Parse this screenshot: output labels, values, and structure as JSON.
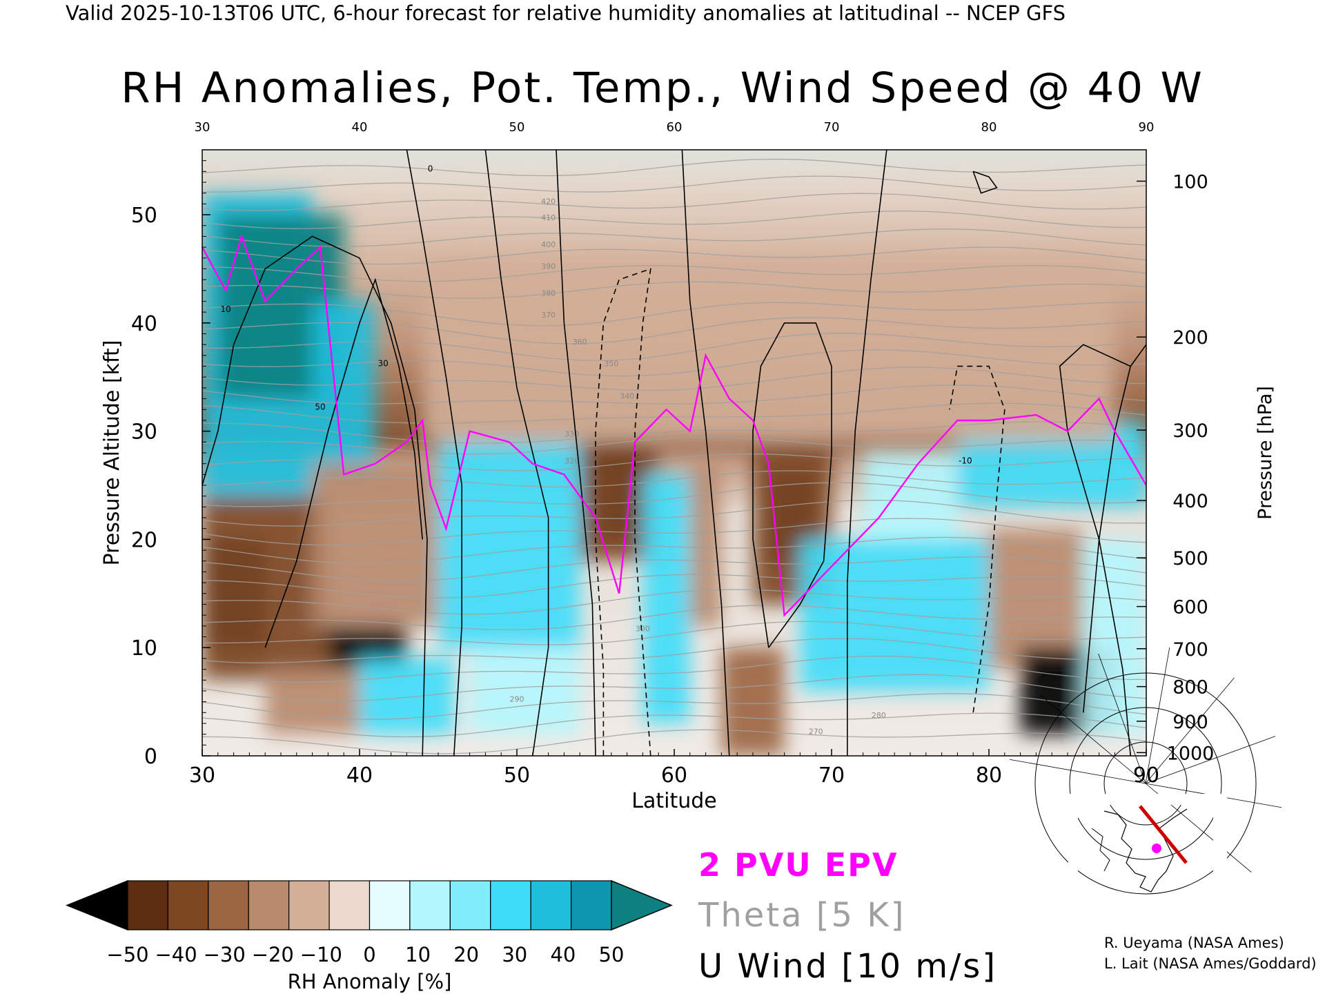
{
  "header": "Valid 2025-10-13T06 UTC, 6-hour forecast for relative humidity anomalies at latitudinal -- NCEP GFS",
  "chart_data": {
    "type": "heatmap",
    "title": "RH Anomalies, Pot. Temp., Wind Speed @ 40 W",
    "xlabel": "Latitude",
    "ylabel_left": "Pressure Altitude [kft]",
    "ylabel_right": "Pressure [hPa]",
    "xlim": [
      30,
      90
    ],
    "ylim_kft": [
      0,
      56
    ],
    "x_ticks": [
      "30",
      "40",
      "50",
      "60",
      "70",
      "80",
      "90"
    ],
    "y_ticks_left": [
      "0",
      "10",
      "20",
      "30",
      "40",
      "50"
    ],
    "y_ticks_right": [
      {
        "label": "100",
        "kft": 53.1
      },
      {
        "label": "200",
        "kft": 38.7
      },
      {
        "label": "300",
        "kft": 30.1
      },
      {
        "label": "400",
        "kft": 23.6
      },
      {
        "label": "500",
        "kft": 18.3
      },
      {
        "label": "600",
        "kft": 13.8
      },
      {
        "label": "700",
        "kft": 9.9
      },
      {
        "label": "800",
        "kft": 6.4
      },
      {
        "label": "900",
        "kft": 3.2
      },
      {
        "label": "1000",
        "kft": 0.3
      }
    ],
    "rh_anomaly_cells": [
      {
        "lat": [
          30,
          34
        ],
        "kft": [
          10,
          20
        ],
        "v": -60
      },
      {
        "lat": [
          30,
          38
        ],
        "kft": [
          7,
          24
        ],
        "v": -40
      },
      {
        "lat": [
          34,
          40
        ],
        "kft": [
          2,
          8
        ],
        "v": -20
      },
      {
        "lat": [
          30,
          37
        ],
        "kft": [
          24,
          52
        ],
        "v": 40
      },
      {
        "lat": [
          31,
          39
        ],
        "kft": [
          33,
          50
        ],
        "v": 55
      },
      {
        "lat": [
          37,
          41
        ],
        "kft": [
          26,
          42
        ],
        "v": 35
      },
      {
        "lat": [
          38,
          43
        ],
        "kft": [
          8,
          12
        ],
        "v": -60
      },
      {
        "lat": [
          37,
          45
        ],
        "kft": [
          12,
          27
        ],
        "v": -25
      },
      {
        "lat": [
          40,
          46
        ],
        "kft": [
          2,
          9
        ],
        "v": 25
      },
      {
        "lat": [
          45,
          54
        ],
        "kft": [
          10,
          29
        ],
        "v": 25
      },
      {
        "lat": [
          47,
          54
        ],
        "kft": [
          2,
          10
        ],
        "v": 15
      },
      {
        "lat": [
          55,
          58
        ],
        "kft": [
          20,
          29
        ],
        "v": -60
      },
      {
        "lat": [
          54,
          59
        ],
        "kft": [
          18,
          31
        ],
        "v": -35
      },
      {
        "lat": [
          58,
          61
        ],
        "kft": [
          3,
          26
        ],
        "v": 30
      },
      {
        "lat": [
          61,
          63
        ],
        "kft": [
          12,
          27
        ],
        "v": -20
      },
      {
        "lat": [
          63,
          67
        ],
        "kft": [
          0,
          10
        ],
        "v": -30
      },
      {
        "lat": [
          66,
          69
        ],
        "kft": [
          18,
          26
        ],
        "v": -60
      },
      {
        "lat": [
          65,
          70
        ],
        "kft": [
          14,
          32
        ],
        "v": -35
      },
      {
        "lat": [
          68,
          80
        ],
        "kft": [
          6,
          20
        ],
        "v": 25
      },
      {
        "lat": [
          72,
          78
        ],
        "kft": [
          20,
          28
        ],
        "v": 15
      },
      {
        "lat": [
          78,
          90
        ],
        "kft": [
          23,
          31
        ],
        "v": 30
      },
      {
        "lat": [
          80,
          86
        ],
        "kft": [
          8,
          21
        ],
        "v": -25
      },
      {
        "lat": [
          82,
          88
        ],
        "kft": [
          2,
          10
        ],
        "v": -60
      },
      {
        "lat": [
          86,
          90
        ],
        "kft": [
          2,
          20
        ],
        "v": 15
      },
      {
        "lat": [
          44,
          88
        ],
        "kft": [
          29,
          46
        ],
        "v": -15
      }
    ],
    "colorbar": {
      "label": "RH Anomaly [%]",
      "ticks": [
        "−50",
        "−40",
        "−30",
        "−20",
        "−10",
        "0",
        "10",
        "20",
        "30",
        "40",
        "50"
      ],
      "min": -50,
      "max": 50,
      "colors": [
        "#000000",
        "#5c2d0e",
        "#7d4722",
        "#9c6642",
        "#b88a6c",
        "#d3af98",
        "#ecd8cc",
        "#e5fdfd",
        "#b4f6fd",
        "#80eefd",
        "#3fdcf8",
        "#1fbedc",
        "#0e96b0",
        "#0f8080"
      ]
    },
    "overlays": {
      "epv_label": "2 PVU EPV",
      "epv_color": "#ff00ff",
      "theta_label": "Theta [5 K]",
      "theta_color": "#a0a0a0",
      "u_label": "U Wind [10 m/s]",
      "u_color": "#000000",
      "theta_contour_labels": [
        "420",
        "410",
        "400",
        "390",
        "380",
        "370",
        "360",
        "350",
        "340",
        "330",
        "320",
        "300",
        "290",
        "280",
        "270"
      ],
      "u_contour_labels": [
        "10",
        "0",
        "30",
        "50",
        "-10"
      ],
      "epv_2pvu_line": [
        [
          30,
          47
        ],
        [
          31.5,
          43
        ],
        [
          32.5,
          48
        ],
        [
          34,
          42
        ],
        [
          36,
          45
        ],
        [
          37.5,
          47
        ],
        [
          38.5,
          33
        ],
        [
          39,
          26
        ],
        [
          41,
          27
        ],
        [
          43,
          29
        ],
        [
          44,
          31
        ],
        [
          44.5,
          25
        ],
        [
          45.5,
          21
        ],
        [
          47,
          30
        ],
        [
          49.5,
          29
        ],
        [
          51,
          27
        ],
        [
          53,
          26
        ],
        [
          55,
          22
        ],
        [
          56.5,
          15
        ],
        [
          57.5,
          29
        ],
        [
          59.5,
          32
        ],
        [
          61,
          30
        ],
        [
          62,
          37
        ],
        [
          63.5,
          33
        ],
        [
          65,
          31
        ],
        [
          66,
          27
        ],
        [
          67,
          13
        ],
        [
          69,
          16
        ],
        [
          71,
          19
        ],
        [
          73,
          22
        ],
        [
          75.5,
          27
        ],
        [
          78,
          31
        ],
        [
          80,
          31
        ],
        [
          83,
          31.5
        ],
        [
          85,
          30
        ],
        [
          87,
          33
        ],
        [
          88,
          30
        ],
        [
          90,
          25
        ]
      ]
    },
    "inset_map": {
      "marker_color": "#ff00ff",
      "track_color": "#cc0000"
    }
  },
  "credits": [
    "R. Ueyama (NASA Ames)",
    "L. Lait (NASA Ames/Goddard)"
  ]
}
